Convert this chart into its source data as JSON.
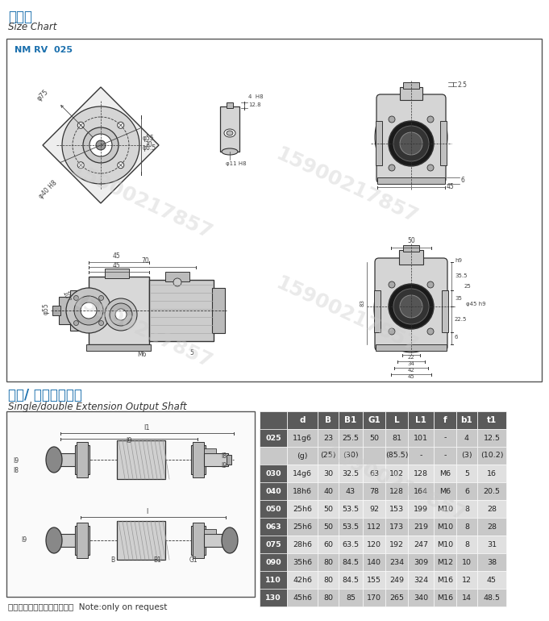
{
  "title_zh": "尺寸图",
  "title_en": "Size Chart",
  "model_label": "NM RV  025",
  "section2_zh": "单向/ 双向输出尺寸",
  "section2_en": "Single/double Extension Output Shaft",
  "note_zh": "注：输出轴可按用户要求定做",
  "note_en": "Note:only on request",
  "watermark": "15900217857",
  "table_headers": [
    "",
    "d",
    "B",
    "B1",
    "G1",
    "L",
    "L1",
    "f",
    "b1",
    "t1"
  ],
  "table_rows": [
    [
      "025",
      "11g6",
      "23",
      "25.5",
      "50",
      "81",
      "101",
      "-",
      "4",
      "12.5"
    ],
    [
      "",
      "(g)",
      "(25)",
      "(30)",
      "",
      "(85.5)",
      "-",
      "-",
      "(3)",
      "(10.2)"
    ],
    [
      "030",
      "14g6",
      "30",
      "32.5",
      "63",
      "102",
      "128",
      "M6",
      "5",
      "16"
    ],
    [
      "040",
      "18h6",
      "40",
      "43",
      "78",
      "128",
      "164",
      "M6",
      "6",
      "20.5"
    ],
    [
      "050",
      "25h6",
      "50",
      "53.5",
      "92",
      "153",
      "199",
      "M10",
      "8",
      "28"
    ],
    [
      "063",
      "25h6",
      "50",
      "53.5",
      "112",
      "173",
      "219",
      "M10",
      "8",
      "28"
    ],
    [
      "075",
      "28h6",
      "60",
      "63.5",
      "120",
      "192",
      "247",
      "M10",
      "8",
      "31"
    ],
    [
      "090",
      "35h6",
      "80",
      "84.5",
      "140",
      "234",
      "309",
      "M12",
      "10",
      "38"
    ],
    [
      "110",
      "42h6",
      "80",
      "84.5",
      "155",
      "249",
      "324",
      "M16",
      "12",
      "45"
    ],
    [
      "130",
      "45h6",
      "80",
      "85",
      "170",
      "265",
      "340",
      "M16",
      "14",
      "48.5"
    ]
  ],
  "header_bg": "#5a5a5a",
  "header_fg": "#ffffff",
  "model_col_bg": "#5a5a5a",
  "model_col_fg": "#ffffff",
  "title_color": "#1a6fad",
  "bg_color": "#ffffff",
  "box_bg": "#ffffff",
  "line_color": "#333333",
  "dim_color": "#444444",
  "body_fill": "#d8d8d8",
  "body_fill2": "#e8e8e8"
}
